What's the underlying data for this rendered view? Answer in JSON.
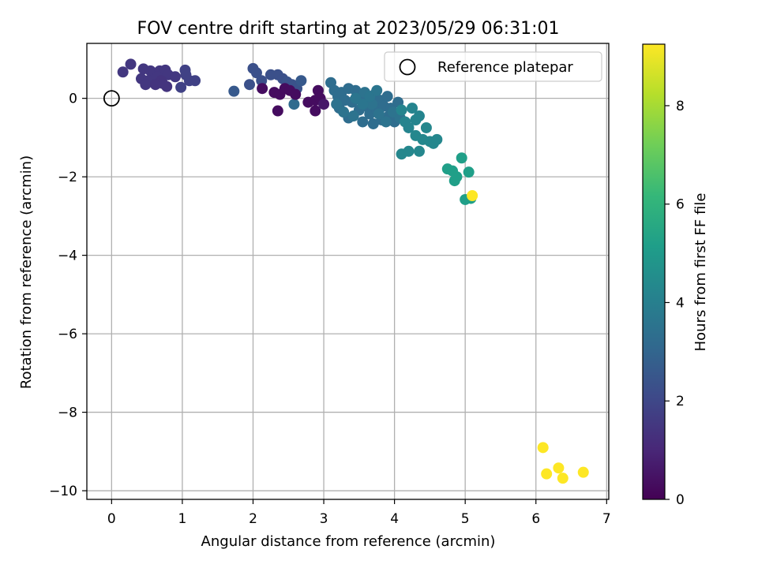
{
  "chart_data": {
    "type": "scatter",
    "title": "FOV centre drift starting at 2023/05/29 06:31:01",
    "xlabel": "Angular distance from reference (arcmin)",
    "ylabel": "Rotation from reference (arcmin)",
    "xlim": [
      -0.35,
      7.03
    ],
    "ylim": [
      -10.22,
      1.4
    ],
    "xticks": [
      0,
      1,
      2,
      3,
      4,
      5,
      6,
      7
    ],
    "yticks": [
      0,
      -2,
      -4,
      -6,
      -8,
      -10
    ],
    "xtick_labels": [
      "0",
      "1",
      "2",
      "3",
      "4",
      "5",
      "6",
      "7"
    ],
    "ytick_labels": [
      "0",
      "−2",
      "−4",
      "−6",
      "−8",
      "−10"
    ],
    "grid": true,
    "legend": {
      "placement": "top-right",
      "entries": [
        {
          "label": "Reference platepar",
          "marker": "open-circle",
          "point": [
            0,
            0
          ]
        }
      ]
    },
    "colorbar": {
      "label": "Hours from first FF file",
      "colormap": "viridis",
      "range": [
        0,
        9.25
      ],
      "ticks": [
        0,
        2,
        4,
        6,
        8
      ],
      "tick_labels": [
        "0",
        "2",
        "4",
        "6",
        "8"
      ]
    },
    "colormap_stops": [
      "#440154",
      "#482878",
      "#3e4989",
      "#31688e",
      "#26828e",
      "#1f9e89",
      "#35b779",
      "#6ece58",
      "#b5de2b",
      "#fde725"
    ],
    "points": [
      [
        0.27,
        0.87,
        1.5
      ],
      [
        0.16,
        0.67,
        1.5
      ],
      [
        0.45,
        0.75,
        1.5
      ],
      [
        0.55,
        0.7,
        1.5
      ],
      [
        0.6,
        0.62,
        1.5
      ],
      [
        0.68,
        0.7,
        1.5
      ],
      [
        0.76,
        0.72,
        1.5
      ],
      [
        0.8,
        0.6,
        1.5
      ],
      [
        0.42,
        0.5,
        1.5
      ],
      [
        0.52,
        0.45,
        1.5
      ],
      [
        0.48,
        0.35,
        1.5
      ],
      [
        0.65,
        0.55,
        1.5
      ],
      [
        0.7,
        0.45,
        1.4
      ],
      [
        0.72,
        0.38,
        1.4
      ],
      [
        0.78,
        0.3,
        1.4
      ],
      [
        0.9,
        0.55,
        1.5
      ],
      [
        0.62,
        0.35,
        1.4
      ],
      [
        1.04,
        0.72,
        1.8
      ],
      [
        1.05,
        0.6,
        1.8
      ],
      [
        1.1,
        0.45,
        1.8
      ],
      [
        1.18,
        0.45,
        1.8
      ],
      [
        0.98,
        0.28,
        1.8
      ],
      [
        1.73,
        0.18,
        2.6
      ],
      [
        1.95,
        0.35,
        2.3
      ],
      [
        2.0,
        0.76,
        2.3
      ],
      [
        2.05,
        0.65,
        2.3
      ],
      [
        2.12,
        0.45,
        2.3
      ],
      [
        2.25,
        0.6,
        2.3
      ],
      [
        2.35,
        0.6,
        2.3
      ],
      [
        2.42,
        0.5,
        2.3
      ],
      [
        2.48,
        0.42,
        2.4
      ],
      [
        2.55,
        0.35,
        2.4
      ],
      [
        2.62,
        0.25,
        2.4
      ],
      [
        2.68,
        0.45,
        2.6
      ],
      [
        2.58,
        -0.15,
        3.2
      ],
      [
        2.13,
        0.25,
        0.3
      ],
      [
        2.3,
        0.15,
        0.3
      ],
      [
        2.38,
        0.1,
        0.3
      ],
      [
        2.45,
        0.25,
        0.3
      ],
      [
        2.52,
        0.2,
        0.3
      ],
      [
        2.6,
        0.1,
        0.3
      ],
      [
        2.35,
        -0.32,
        0.3
      ],
      [
        2.78,
        -0.1,
        0.3
      ],
      [
        2.88,
        -0.05,
        0.3
      ],
      [
        2.92,
        0.2,
        0.3
      ],
      [
        2.95,
        0.0,
        0.3
      ],
      [
        2.88,
        -0.32,
        0.3
      ],
      [
        3.0,
        -0.15,
        0.6
      ],
      [
        3.1,
        0.4,
        3.3
      ],
      [
        3.15,
        0.2,
        3.3
      ],
      [
        3.2,
        0.05,
        3.3
      ],
      [
        3.22,
        -0.25,
        3.3
      ],
      [
        3.25,
        0.15,
        3.3
      ],
      [
        3.3,
        -0.05,
        3.3
      ],
      [
        3.35,
        0.25,
        3.3
      ],
      [
        3.35,
        -0.5,
        3.3
      ],
      [
        3.4,
        -0.1,
        3.3
      ],
      [
        3.45,
        0.2,
        3.3
      ],
      [
        3.5,
        -0.3,
        3.3
      ],
      [
        3.5,
        0.1,
        3.3
      ],
      [
        3.55,
        -0.6,
        3.3
      ],
      [
        3.6,
        -0.2,
        3.3
      ],
      [
        3.62,
        0.0,
        3.3
      ],
      [
        3.65,
        -0.4,
        3.3
      ],
      [
        3.7,
        -0.65,
        3.3
      ],
      [
        3.72,
        0.1,
        3.3
      ],
      [
        3.75,
        -0.3,
        3.3
      ],
      [
        3.8,
        -0.05,
        3.3
      ],
      [
        3.82,
        -0.55,
        3.3
      ],
      [
        3.85,
        -0.2,
        3.3
      ],
      [
        3.9,
        0.05,
        3.3
      ],
      [
        3.92,
        -0.45,
        3.3
      ],
      [
        3.95,
        -0.25,
        3.3
      ],
      [
        4.0,
        -0.6,
        3.3
      ],
      [
        4.05,
        -0.1,
        3.3
      ],
      [
        3.18,
        -0.15,
        3.5
      ],
      [
        3.28,
        -0.35,
        3.5
      ],
      [
        3.42,
        -0.45,
        3.5
      ],
      [
        3.58,
        0.15,
        3.5
      ],
      [
        3.68,
        -0.15,
        3.5
      ],
      [
        3.78,
        -0.4,
        3.5
      ],
      [
        3.88,
        -0.6,
        3.5
      ],
      [
        3.98,
        -0.35,
        3.5
      ],
      [
        4.08,
        -0.5,
        3.5
      ],
      [
        3.45,
        0.0,
        3.6
      ],
      [
        3.55,
        -0.15,
        3.6
      ],
      [
        3.65,
        0.05,
        3.6
      ],
      [
        3.75,
        0.2,
        3.6
      ],
      [
        4.1,
        -0.3,
        4.2
      ],
      [
        4.15,
        -0.6,
        4.2
      ],
      [
        4.2,
        -0.75,
        4.2
      ],
      [
        4.25,
        -0.25,
        4.2
      ],
      [
        4.3,
        -0.55,
        4.2
      ],
      [
        4.35,
        -0.45,
        4.2
      ],
      [
        4.1,
        -1.42,
        4.3
      ],
      [
        4.2,
        -1.35,
        4.3
      ],
      [
        4.3,
        -0.95,
        4.3
      ],
      [
        4.35,
        -1.35,
        4.3
      ],
      [
        4.4,
        -1.05,
        4.3
      ],
      [
        4.45,
        -0.75,
        4.3
      ],
      [
        4.5,
        -1.1,
        4.3
      ],
      [
        4.55,
        -1.15,
        4.3
      ],
      [
        4.6,
        -1.05,
        4.3
      ],
      [
        4.75,
        -1.8,
        5.2
      ],
      [
        4.82,
        -1.85,
        5.2
      ],
      [
        4.85,
        -2.1,
        5.2
      ],
      [
        4.88,
        -2.0,
        5.2
      ],
      [
        4.95,
        -1.52,
        5.2
      ],
      [
        5.05,
        -1.88,
        5.2
      ],
      [
        5.0,
        -2.58,
        5.2
      ],
      [
        5.08,
        -2.55,
        5.2
      ],
      [
        5.1,
        -2.48,
        9.25
      ],
      [
        6.1,
        -8.9,
        9.25
      ],
      [
        6.15,
        -9.57,
        9.25
      ],
      [
        6.32,
        -9.42,
        9.25
      ],
      [
        6.38,
        -9.68,
        9.25
      ],
      [
        6.67,
        -9.53,
        9.25
      ]
    ]
  }
}
